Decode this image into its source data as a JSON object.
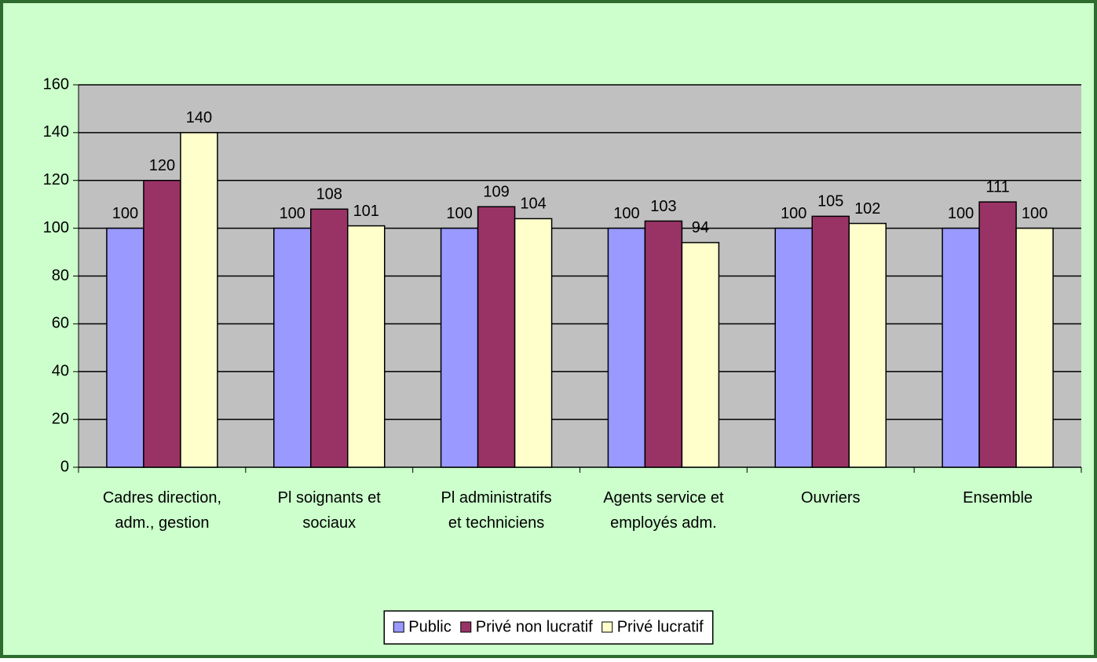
{
  "chart_data": {
    "type": "bar",
    "categories": [
      "Cadres direction, adm., gestion",
      "Pl soignants et sociaux",
      "Pl administratifs et techniciens",
      "Agents service et employés adm.",
      "Ouvriers",
      "Ensemble"
    ],
    "series": [
      {
        "name": "Public",
        "color": "#9999ff",
        "values": [
          100,
          100,
          100,
          100,
          100,
          100
        ]
      },
      {
        "name": "Privé non lucratif",
        "color": "#993366",
        "values": [
          120,
          108,
          109,
          103,
          105,
          111
        ]
      },
      {
        "name": "Privé lucratif",
        "color": "#ffffcc",
        "values": [
          140,
          101,
          104,
          94,
          102,
          100
        ]
      }
    ],
    "ylim": [
      0,
      160
    ],
    "yticks": [
      0,
      20,
      40,
      60,
      80,
      100,
      120,
      140,
      160
    ],
    "grid": true,
    "legend": "bottom"
  }
}
